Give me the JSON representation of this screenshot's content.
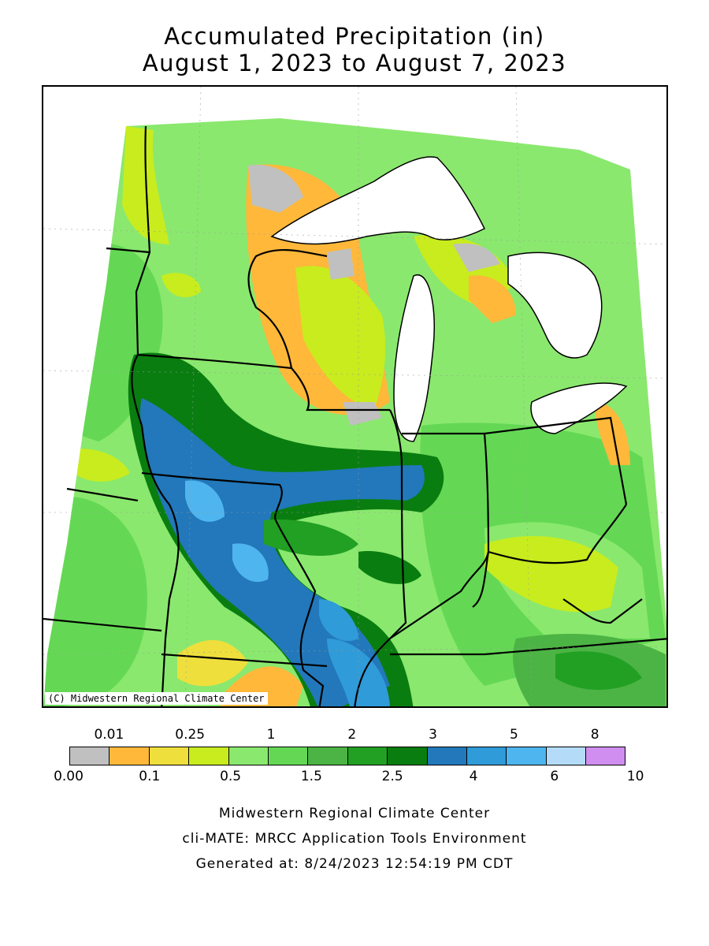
{
  "title": {
    "line1": "Accumulated Precipitation (in)",
    "line2": "August 1, 2023 to August 7, 2023"
  },
  "map": {
    "copyright": "(C) Midwestern Regional Climate Center",
    "colors": {
      "none": "#c0c0c0",
      "orange": "#ffb83a",
      "yellow": "#eedf3c",
      "lime": "#c8ec1e",
      "lightgreen": "#8ae86e",
      "green1": "#64d854",
      "green2": "#4cb444",
      "green3": "#22a023",
      "green4": "#0a7d10",
      "blue1": "#2278ba",
      "blue2": "#2f9bd8",
      "blue3": "#4fb5ee",
      "lake": "#ffffff"
    }
  },
  "legend": {
    "top_labels": [
      "0.01",
      "0.25",
      "1",
      "2",
      "3",
      "5",
      "8"
    ],
    "bottom_labels": [
      "0.00",
      "0.1",
      "0.5",
      "1.5",
      "2.5",
      "4",
      "6",
      "10"
    ],
    "bins": [
      {
        "range": "0.00-0.01",
        "color": "#c0c0c0"
      },
      {
        "range": "0.01-0.1",
        "color": "#ffb83a"
      },
      {
        "range": "0.1-0.25",
        "color": "#eedf3c"
      },
      {
        "range": "0.25-0.5",
        "color": "#c8ec1e"
      },
      {
        "range": "0.5-1",
        "color": "#8ae86e"
      },
      {
        "range": "1-1.5",
        "color": "#64d854"
      },
      {
        "range": "1.5-2",
        "color": "#4cb444"
      },
      {
        "range": "2-2.5",
        "color": "#22a023"
      },
      {
        "range": "2.5-3",
        "color": "#0a7d10"
      },
      {
        "range": "3-4",
        "color": "#2278ba"
      },
      {
        "range": "4-5",
        "color": "#2f9bd8"
      },
      {
        "range": "5-6",
        "color": "#4fb5ee"
      },
      {
        "range": "6-8",
        "color": "#b4dcf8"
      },
      {
        "range": "8-10",
        "color": "#d08ef0"
      }
    ]
  },
  "footer": {
    "line1": "Midwestern Regional Climate Center",
    "line2": "cli-MATE: MRCC Application Tools Environment",
    "line3": "Generated at: 8/24/2023 12:54:19 PM CDT"
  }
}
